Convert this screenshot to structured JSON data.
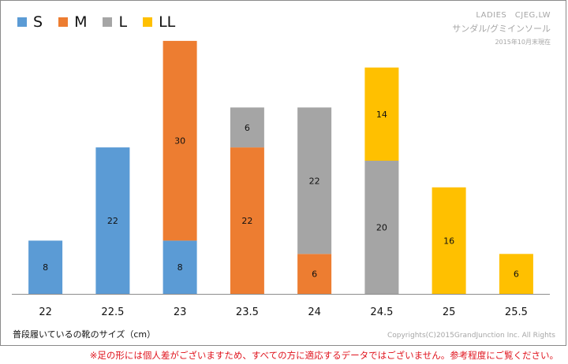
{
  "legend": {
    "items": [
      {
        "label": "S",
        "color": "#5b9bd5"
      },
      {
        "label": "M",
        "color": "#ed7d31"
      },
      {
        "label": "L",
        "color": "#a5a5a5"
      },
      {
        "label": "LL",
        "color": "#ffc000"
      }
    ]
  },
  "meta": {
    "line1": "LADIES　CJEG,LW",
    "line2": "サンダル/グミインソール",
    "line3": "2015年10月末現在"
  },
  "x_axis_title": "普段履いているの靴のサイズ（cm）",
  "copyright": "Copyrights(C)2015GrandJunction Inc. All Rights",
  "disclaimer": "※足の形には個人差がございますため、すべての方に適応するデータではございません。参考程度にご覧ください。",
  "chart_data": {
    "type": "bar",
    "stacked": true,
    "categories": [
      "22",
      "22.5",
      "23",
      "23.5",
      "24",
      "24.5",
      "25",
      "25.5"
    ],
    "series": [
      {
        "name": "S",
        "color": "#5b9bd5",
        "values": [
          8,
          22,
          8,
          0,
          0,
          0,
          0,
          0
        ]
      },
      {
        "name": "M",
        "color": "#ed7d31",
        "values": [
          0,
          0,
          30,
          22,
          6,
          0,
          0,
          0
        ]
      },
      {
        "name": "L",
        "color": "#a5a5a5",
        "values": [
          0,
          0,
          0,
          6,
          22,
          20,
          0,
          0
        ]
      },
      {
        "name": "LL",
        "color": "#ffc000",
        "values": [
          0,
          0,
          0,
          0,
          0,
          14,
          16,
          6
        ]
      }
    ],
    "ylim": [
      0,
      38
    ],
    "grid": false,
    "legend_position": "top-left",
    "data_labels": true
  }
}
